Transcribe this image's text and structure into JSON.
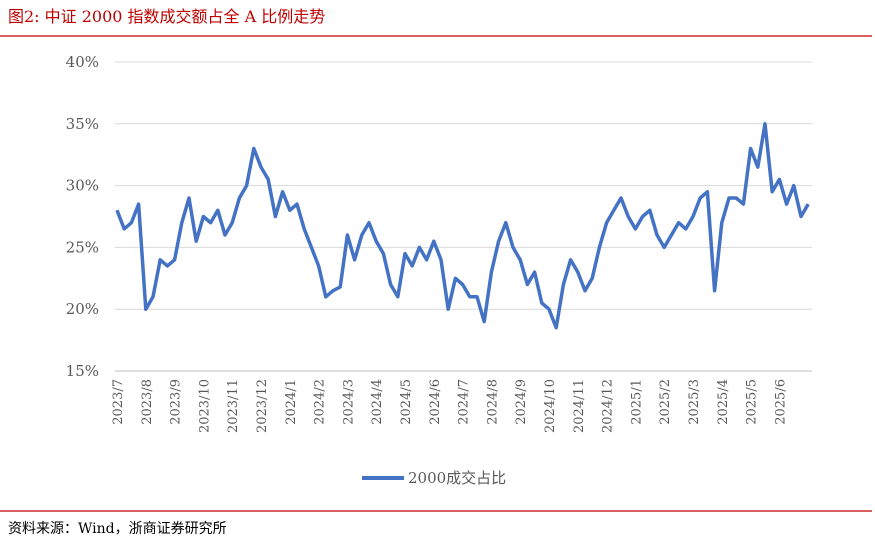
{
  "chart_data": {
    "type": "line",
    "title": "图2:    中证 2000 指数成交额占全 A 比例走势",
    "source": "资料来源：Wind，浙商证券研究所",
    "categories": [
      "2023/7",
      null,
      null,
      null,
      "2023/8",
      null,
      null,
      null,
      "2023/9",
      null,
      null,
      null,
      "2023/10",
      null,
      null,
      null,
      "2023/11",
      null,
      null,
      null,
      "2023/12",
      null,
      null,
      null,
      "2024/1",
      null,
      null,
      null,
      "2024/2",
      null,
      null,
      null,
      "2024/3",
      null,
      null,
      null,
      "2024/4",
      null,
      null,
      null,
      "2024/5",
      null,
      null,
      null,
      "2024/6",
      null,
      null,
      null,
      "2024/7",
      null,
      null,
      null,
      "2024/8",
      null,
      null,
      null,
      "2024/9",
      null,
      null,
      null,
      "2024/10",
      null,
      null,
      null,
      "2024/11",
      null,
      null,
      null,
      "2024/12",
      null,
      null,
      null,
      "2025/1",
      null,
      null,
      null,
      "2025/2",
      null,
      null,
      null,
      "2025/3",
      null,
      null,
      null,
      "2025/4",
      null,
      null,
      null,
      "2025/5",
      null,
      null,
      null,
      "2025/6",
      null,
      null,
      null,
      null
    ],
    "series": [
      {
        "name": "2000成交占比",
        "color": "#4472c4",
        "values": [
          28,
          26.5,
          27,
          28.5,
          20,
          21,
          24,
          23.5,
          24,
          27,
          29,
          25.5,
          27.5,
          27,
          28,
          26,
          27,
          29,
          30,
          33,
          31.5,
          30.5,
          27.5,
          29.5,
          28,
          28.5,
          26.5,
          25,
          23.5,
          21,
          21.5,
          21.8,
          26,
          24,
          26,
          27,
          25.5,
          24.5,
          22,
          21,
          24.5,
          23.5,
          25,
          24,
          25.5,
          24,
          20,
          22.5,
          22,
          21,
          21,
          19,
          23,
          25.5,
          27,
          25,
          24,
          22,
          23,
          20.5,
          20,
          18.5,
          22,
          24,
          23,
          21.5,
          22.5,
          25,
          27,
          28,
          29,
          27.5,
          26.5,
          27.5,
          28,
          26,
          25,
          26,
          27,
          26.5,
          27.5,
          29,
          29.5,
          21.5,
          27,
          29,
          29,
          28.5,
          33,
          31.5,
          35,
          29.5,
          30.5,
          28.5,
          30,
          27.5,
          28.5
        ]
      }
    ],
    "ylim": [
      15,
      40
    ],
    "yticks": [
      {
        "value": 15,
        "label": "15%"
      },
      {
        "value": 20,
        "label": "20%"
      },
      {
        "value": 25,
        "label": "25%"
      },
      {
        "value": 30,
        "label": "30%"
      },
      {
        "value": 35,
        "label": "35%"
      },
      {
        "value": 40,
        "label": "40%"
      }
    ],
    "grid": true,
    "legend": "bottom"
  }
}
